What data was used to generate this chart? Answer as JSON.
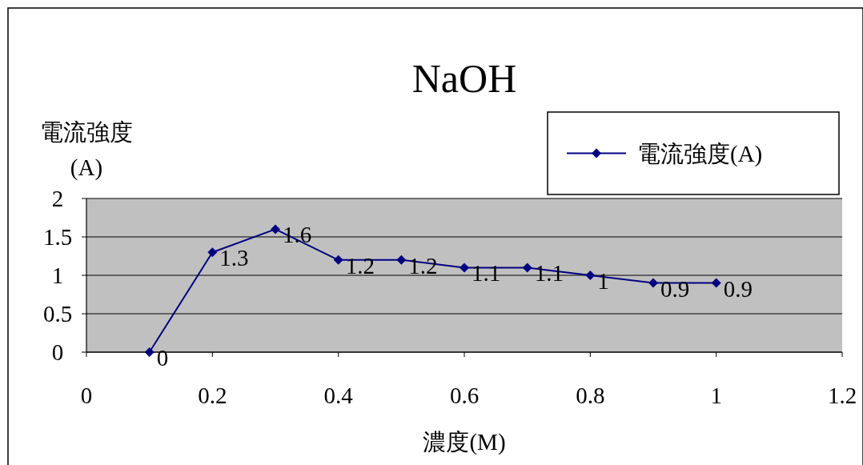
{
  "chart_data": {
    "type": "line",
    "title": "NaOH",
    "xlabel": "濃度(M)",
    "ylabel": "電流強度\n(A)",
    "x": [
      0.1,
      0.2,
      0.3,
      0.4,
      0.5,
      0.6,
      0.7,
      0.8,
      0.9,
      1
    ],
    "series": [
      {
        "name": "電流強度(A)",
        "color": "#000080",
        "values": [
          0,
          1.3,
          1.6,
          1.2,
          1.2,
          1.1,
          1.1,
          1,
          0.9,
          0.9
        ]
      }
    ],
    "xlim": [
      0,
      1.2
    ],
    "xticks": [
      0,
      0.2,
      0.4,
      0.6,
      0.8,
      1,
      1.2
    ],
    "ylim": [
      0,
      2
    ],
    "yticks": [
      0,
      0.5,
      1,
      1.5,
      2
    ],
    "grid": "y",
    "legend": "top right",
    "marker": "diamond",
    "line_style": "solid",
    "data_labels": true
  }
}
